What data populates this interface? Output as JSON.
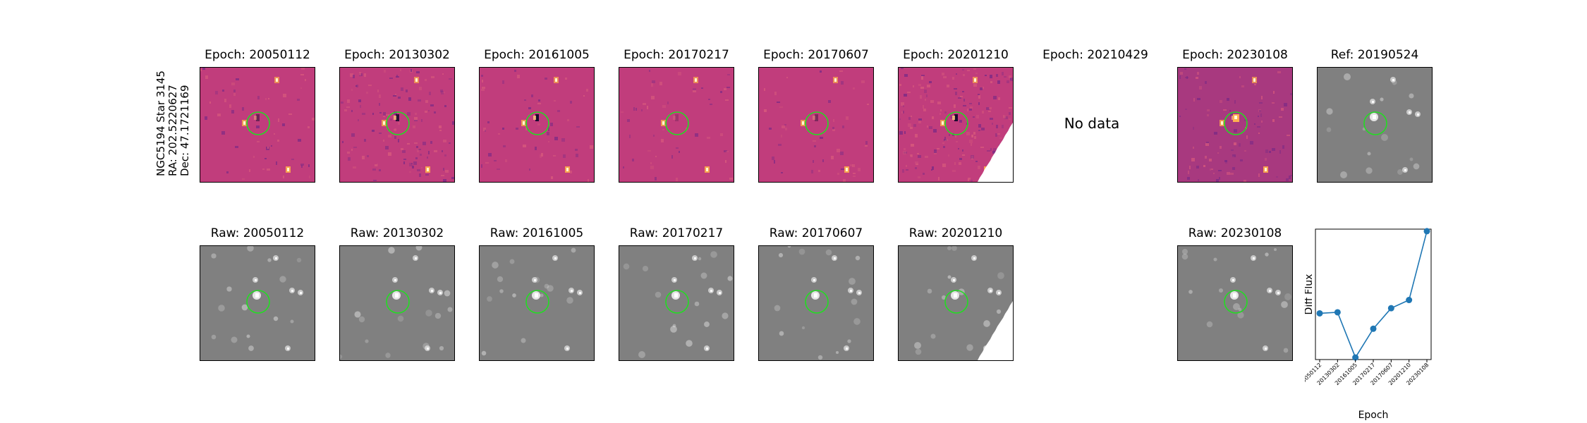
{
  "object_label": {
    "name": "NGC5194 Star 3145",
    "ra": "RA: 202.5220627",
    "dec": "Dec: 47.1721169"
  },
  "diff_row": [
    {
      "title": "Epoch: 20050112",
      "style": "diff",
      "noise": 0.35,
      "dipole": 0.5
    },
    {
      "title": "Epoch: 20130302",
      "style": "diff",
      "noise": 0.8,
      "dipole": 0.9
    },
    {
      "title": "Epoch: 20161005",
      "style": "diff",
      "noise": 0.35,
      "dipole": 1.0
    },
    {
      "title": "Epoch: 20170217",
      "style": "diff",
      "noise": 0.3,
      "dipole": 0.2
    },
    {
      "title": "Epoch: 20170607",
      "style": "diff",
      "noise": 0.3,
      "dipole": 0.4
    },
    {
      "title": "Epoch: 20201210",
      "style": "diff-edge",
      "noise": 1.2,
      "dipole": 1.0
    },
    {
      "title": "Epoch: 20210429",
      "style": "none"
    },
    {
      "title": "Epoch: 20230108",
      "style": "diff-bright",
      "noise": 0.6,
      "dipole": 0.8
    },
    {
      "title": "Ref: 20190524",
      "style": "raw"
    }
  ],
  "no_data_text": "No data",
  "raw_row": [
    {
      "title": "Raw: 20050112",
      "style": "raw"
    },
    {
      "title": "Raw: 20130302",
      "style": "raw"
    },
    {
      "title": "Raw: 20161005",
      "style": "raw"
    },
    {
      "title": "Raw: 20170217",
      "style": "raw"
    },
    {
      "title": "Raw: 20170607",
      "style": "raw"
    },
    {
      "title": "Raw: 20201210",
      "style": "raw-edge"
    },
    {
      "title": "",
      "style": "none"
    },
    {
      "title": "Raw: 20230108",
      "style": "raw"
    }
  ],
  "colors": {
    "diff_background": "#c13d7c",
    "raw_background": "#808080",
    "circle": "#22dd22",
    "series": "#1f77b4"
  },
  "chart_data": {
    "type": "line",
    "xlabel": "Epoch",
    "ylabel": "Diff Flux",
    "categories": [
      "20050112",
      "20130302",
      "20161005",
      "20170217",
      "20170607",
      "20201210",
      "20230108"
    ],
    "values": [
      0.43,
      0.44,
      0.0,
      0.28,
      0.48,
      0.56,
      1.23
    ],
    "ylim": [
      -0.02,
      1.25
    ],
    "grid": false,
    "legend": "none"
  }
}
